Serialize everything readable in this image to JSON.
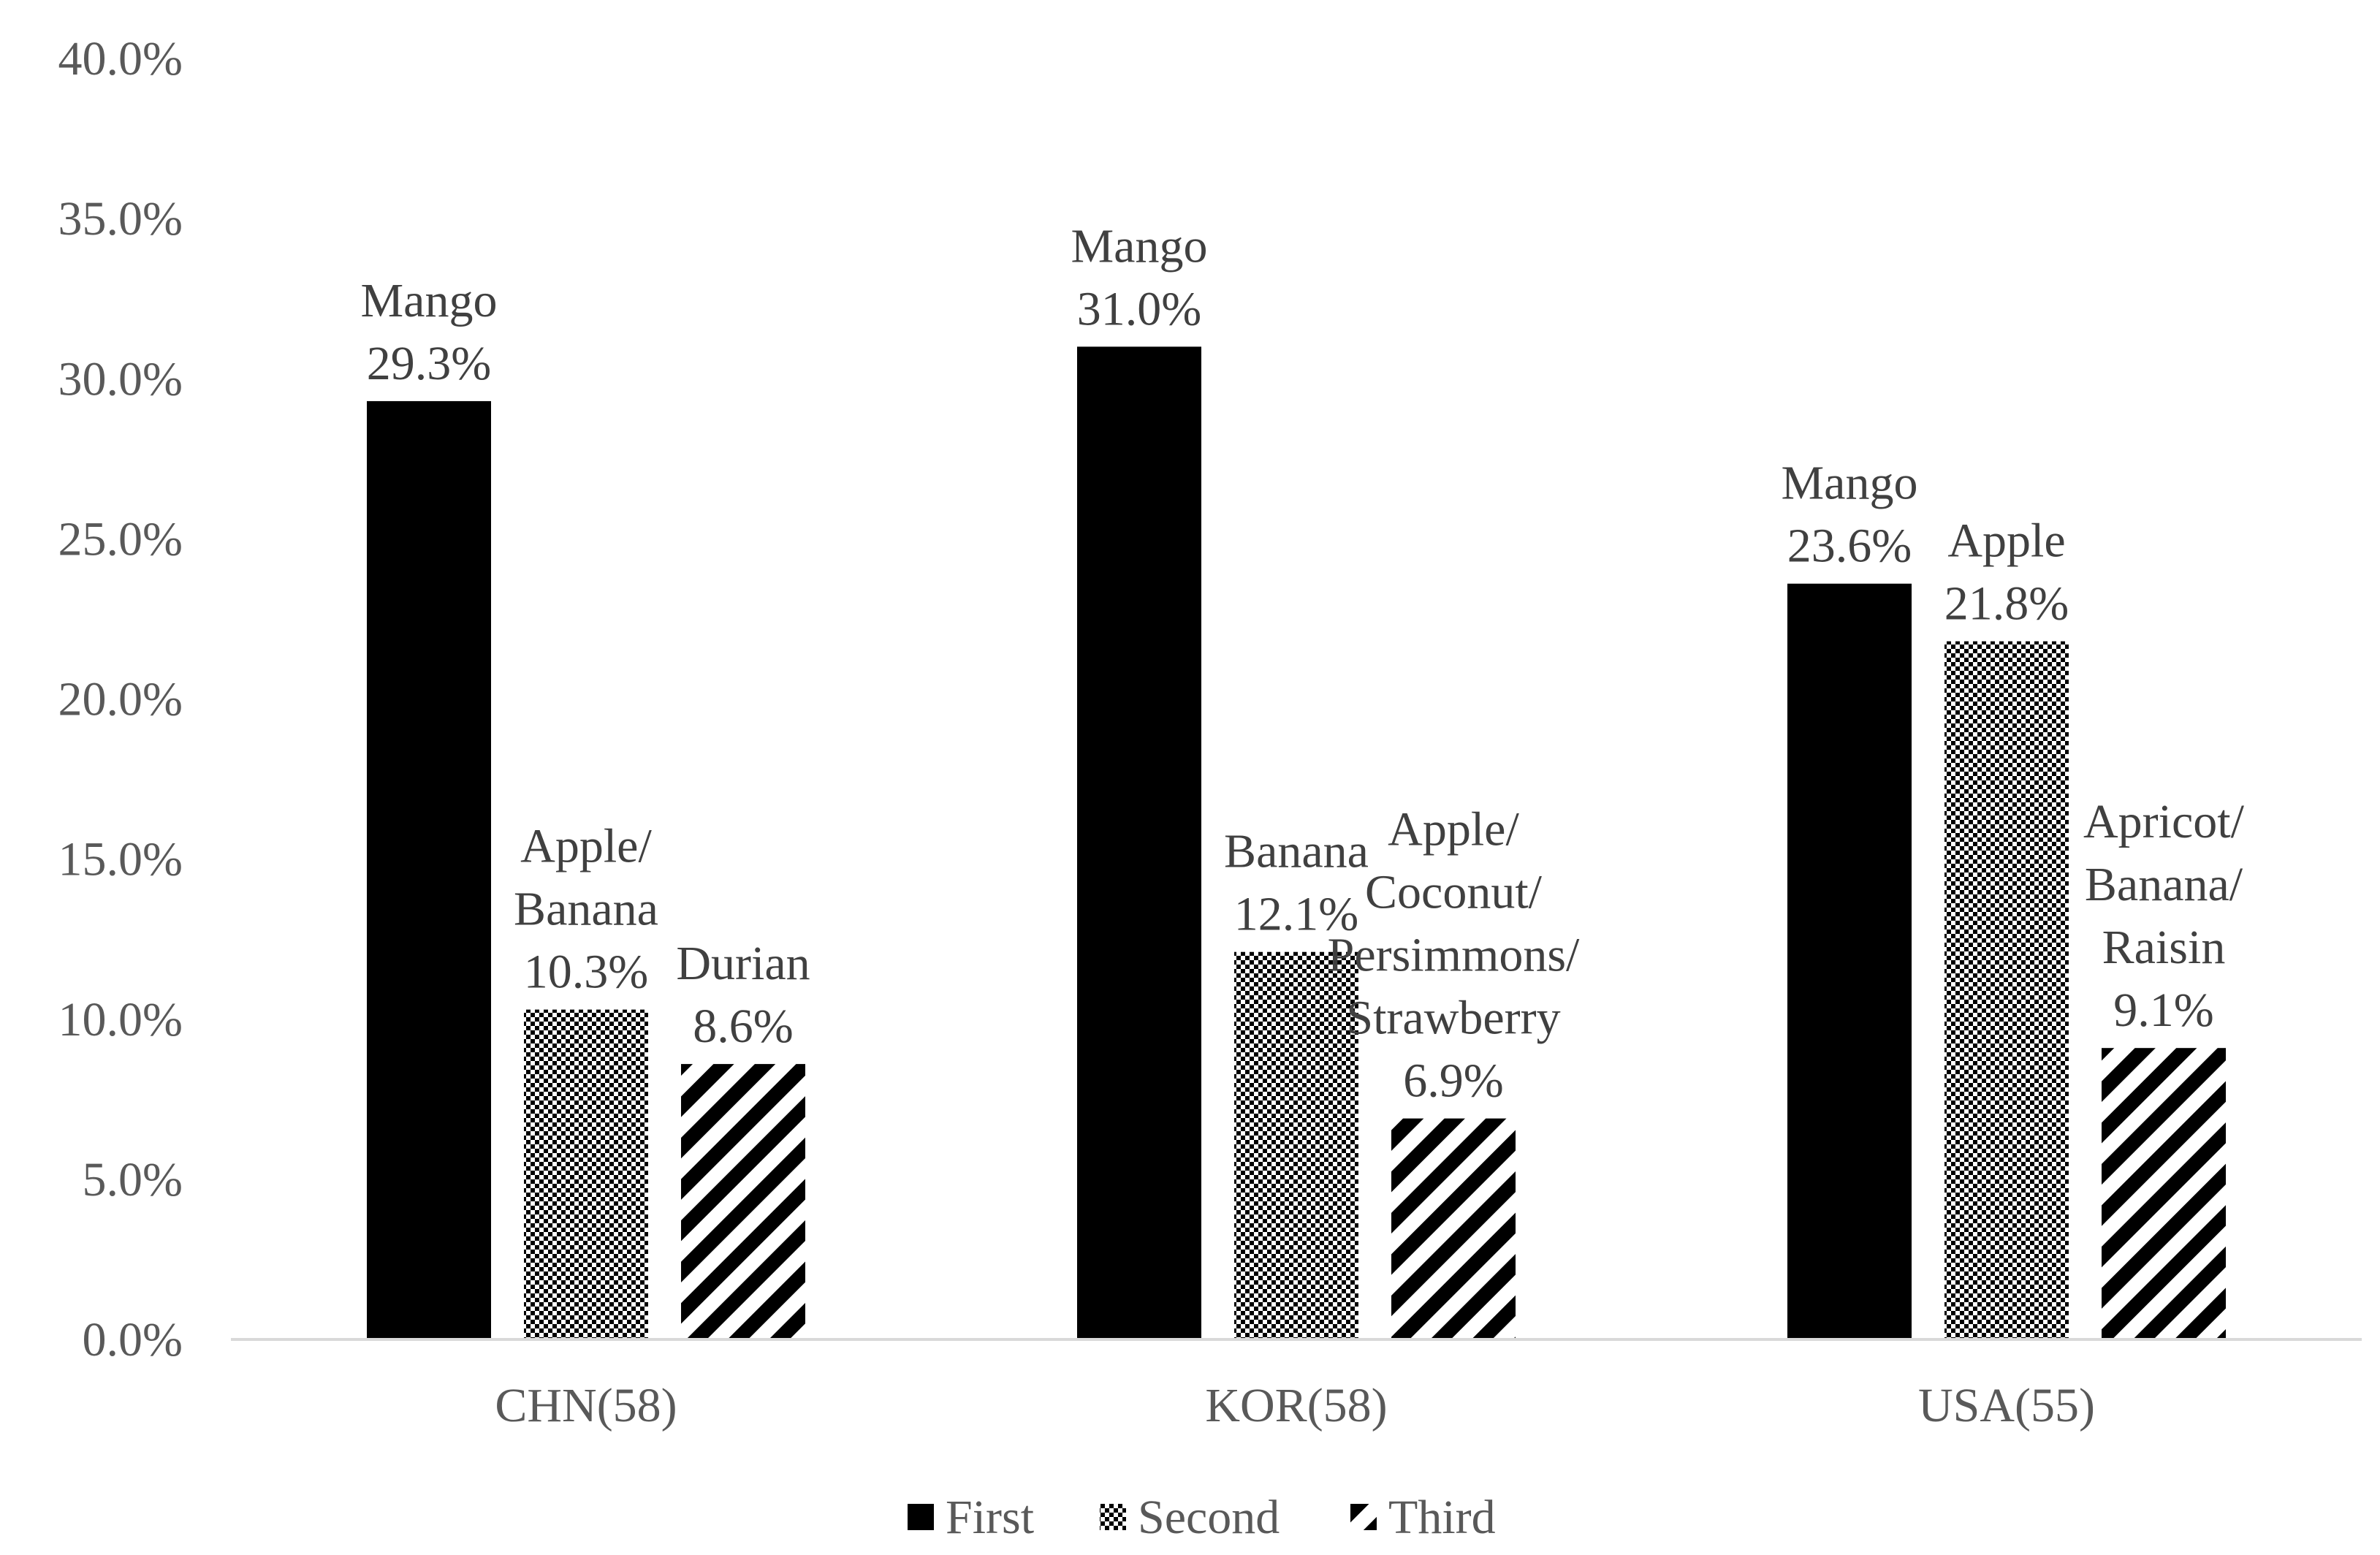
{
  "chart_data": {
    "type": "bar",
    "categories": [
      "CHN(58)",
      "KOR(58)",
      "USA(55)"
    ],
    "series": [
      {
        "name": "First",
        "pattern": "solid",
        "values": [
          29.3,
          31.0,
          23.6
        ],
        "labels": [
          [
            "Mango",
            "29.3%"
          ],
          [
            "Mango",
            "31.0%"
          ],
          [
            "Mango",
            "23.6%"
          ]
        ]
      },
      {
        "name": "Second",
        "pattern": "checker",
        "values": [
          10.3,
          12.1,
          21.8
        ],
        "labels": [
          [
            "Apple/",
            "Banana",
            "10.3%"
          ],
          [
            "Banana",
            "12.1%"
          ],
          [
            "Apple",
            "21.8%"
          ]
        ]
      },
      {
        "name": "Third",
        "pattern": "diagonal",
        "values": [
          8.6,
          6.9,
          9.1
        ],
        "labels": [
          [
            "Durian",
            "8.6%"
          ],
          [
            "Apple/",
            "Coconut/",
            "Persimmons/",
            "Strawberry",
            "6.9%"
          ],
          [
            "Apricot/",
            "Banana/",
            "Raisin",
            "9.1%"
          ]
        ]
      }
    ],
    "ylim": [
      0,
      40
    ],
    "yticks": [
      "0.0%",
      "5.0%",
      "10.0%",
      "15.0%",
      "20.0%",
      "25.0%",
      "30.0%",
      "35.0%",
      "40.0%"
    ],
    "legend_position": "bottom",
    "grid": false,
    "colors": {
      "bar": "#000000",
      "text": "#595959",
      "axis": "#d9d9d9"
    }
  }
}
